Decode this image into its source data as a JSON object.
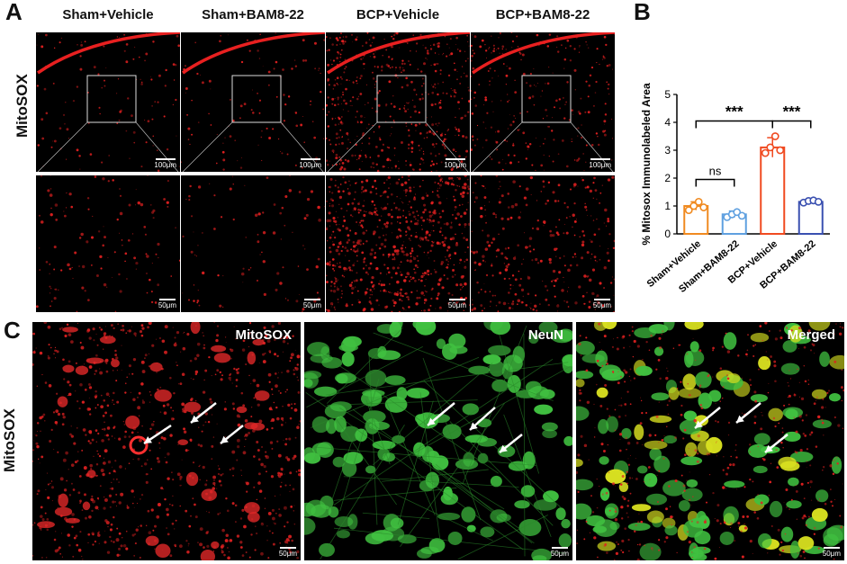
{
  "panels": {
    "a": {
      "letter": "A",
      "row_label": "MitoSOX",
      "columns": [
        "Sham+Vehicle",
        "Sham+BAM8-22",
        "BCP+Vehicle",
        "BCP+BAM8-22"
      ],
      "scale_top": "100μm",
      "scale_bottom": "50μm"
    },
    "b": {
      "letter": "B"
    },
    "c": {
      "letter": "C",
      "row_label": "MitoSOX",
      "channels": [
        "MitoSOX",
        "NeuN",
        "Merged"
      ],
      "scale": "50μm"
    }
  },
  "colors": {
    "red_signal": "#e02020",
    "green_signal": "#3ac03a",
    "merge_yellow": "#d8e020"
  },
  "chart_data": {
    "type": "bar",
    "categories": [
      "Sham+Vehicle",
      "Sham+BAM8-22",
      "BCP+Vehicle",
      "BCP+BAM8-22"
    ],
    "ylabel": "% Mitosox Immunolabeled Area",
    "ylim": [
      0,
      5
    ],
    "yticks": [
      0,
      1,
      2,
      3,
      4,
      5
    ],
    "values": [
      1.0,
      0.7,
      3.1,
      1.15
    ],
    "errors": [
      0.15,
      0.12,
      0.35,
      0.05
    ],
    "points": [
      [
        0.85,
        1.0,
        1.15,
        0.95
      ],
      [
        0.6,
        0.7,
        0.78,
        0.65
      ],
      [
        2.9,
        3.1,
        3.5,
        3.0
      ],
      [
        1.12,
        1.18,
        1.2,
        1.15
      ]
    ],
    "bar_colors": [
      "#f08a20",
      "#5fa0e0",
      "#f04a20",
      "#3a50b0"
    ],
    "significance": [
      {
        "pair": [
          0,
          1
        ],
        "label": "ns"
      },
      {
        "pair": [
          0,
          2
        ],
        "label": "***"
      },
      {
        "pair": [
          2,
          3
        ],
        "label": "***"
      }
    ],
    "grid": false
  }
}
